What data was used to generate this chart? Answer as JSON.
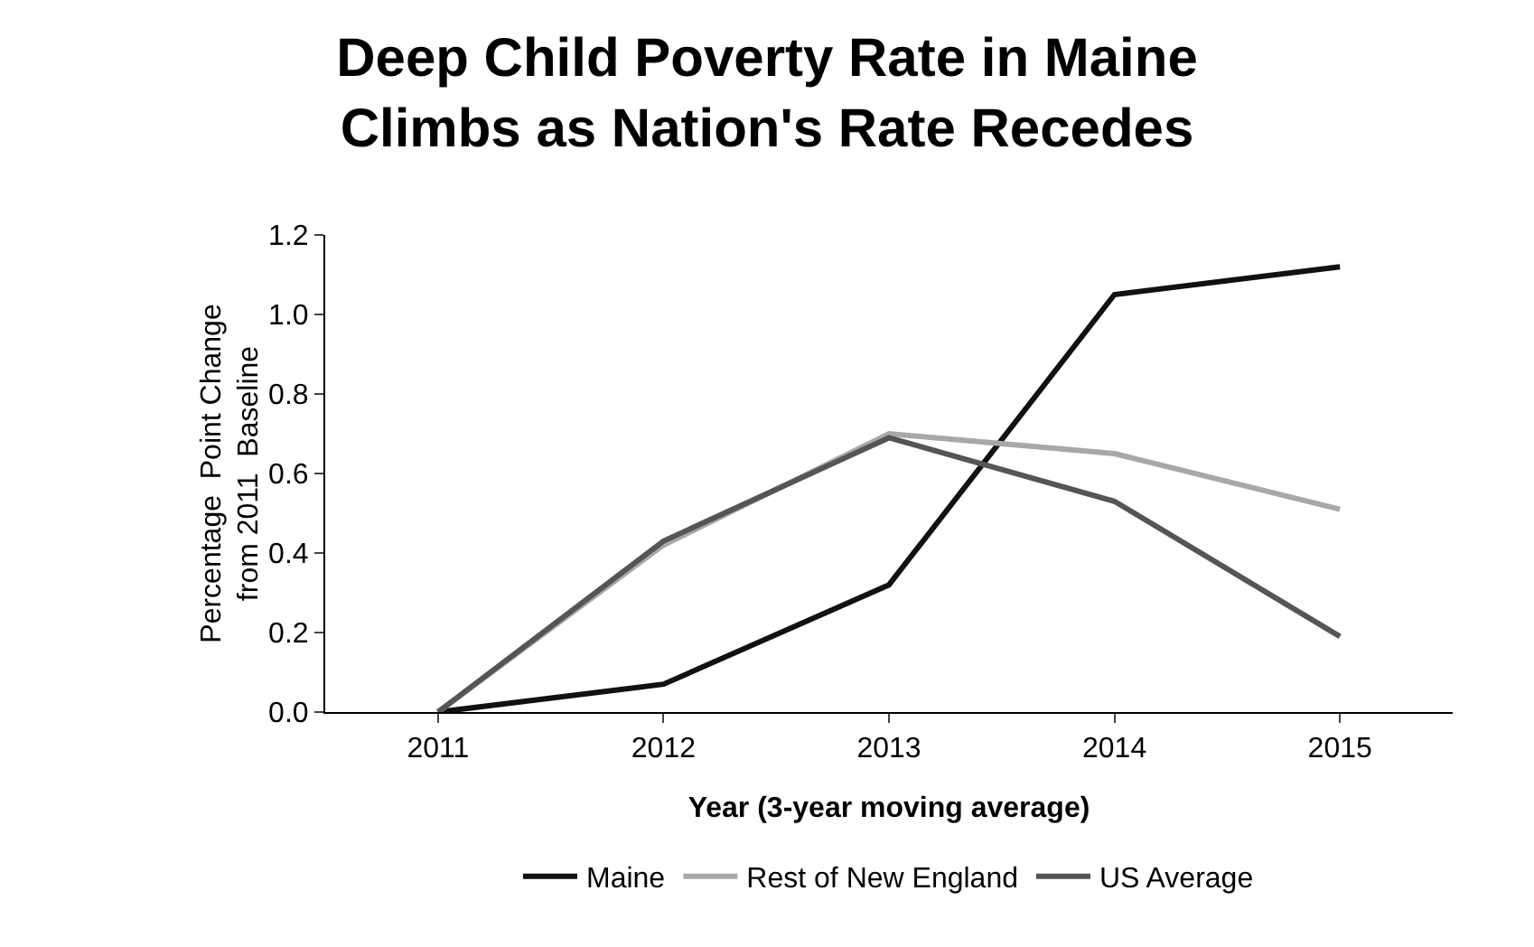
{
  "chart_data": {
    "type": "line",
    "title": "Deep Child Poverty Rate in Maine\nClimbs as Nation's Rate Recedes",
    "xlabel": "Year (3-year moving average)",
    "ylabel": "Percentage  Point Change\nfrom 2011  Baseline",
    "categories": [
      "2011",
      "2012",
      "2013",
      "2014",
      "2015"
    ],
    "series": [
      {
        "name": "Maine",
        "color": "#111111",
        "values": [
          0,
          0.07,
          0.32,
          1.05,
          1.12
        ]
      },
      {
        "name": "Rest of New England",
        "color": "#a8a8a8",
        "values": [
          0,
          0.42,
          0.7,
          0.65,
          0.51
        ]
      },
      {
        "name": "US Average",
        "color": "#555555",
        "values": [
          0,
          0.43,
          0.69,
          0.53,
          0.19
        ]
      }
    ],
    "ylim": [
      0,
      1.2
    ],
    "yticks": [
      {
        "value": 0,
        "label": "0.0"
      },
      {
        "value": 0.2,
        "label": "0.2"
      },
      {
        "value": 0.4,
        "label": "0.4"
      },
      {
        "value": 0.6,
        "label": "0.6"
      },
      {
        "value": 0.8,
        "label": "0.8"
      },
      {
        "value": 1,
        "label": "1.0"
      },
      {
        "value": 1.2,
        "label": "1.2"
      }
    ],
    "grid": false,
    "legend": "bottom"
  }
}
